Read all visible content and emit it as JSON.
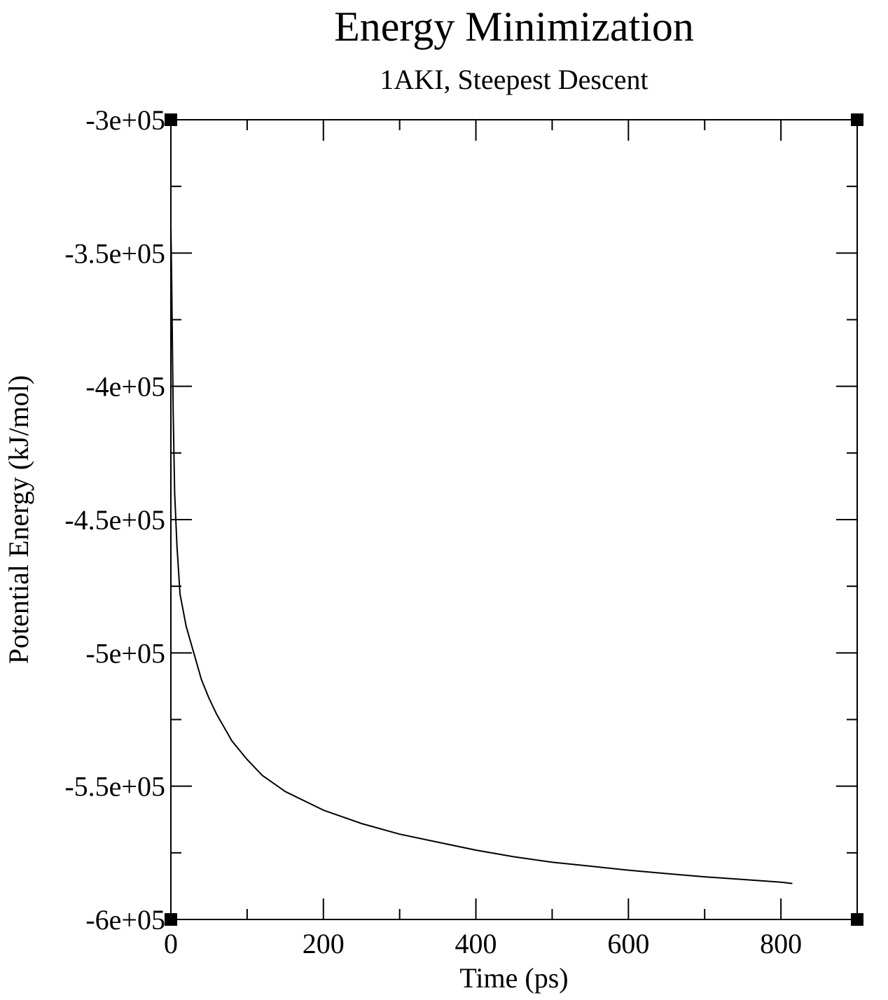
{
  "chart_data": {
    "type": "line",
    "title": "Energy Minimization",
    "subtitle": "1AKI, Steepest Descent",
    "xlabel": "Time (ps)",
    "ylabel": "Potential Energy (kJ/mol)",
    "xlim": [
      0,
      900
    ],
    "ylim": [
      -600000,
      -300000
    ],
    "x_ticks": [
      0,
      200,
      400,
      600,
      800
    ],
    "x_tick_labels": [
      "0",
      "200",
      "400",
      "600",
      "800"
    ],
    "y_ticks": [
      -300000,
      -350000,
      -400000,
      -450000,
      -500000,
      -550000,
      -600000
    ],
    "y_tick_labels": [
      "-3e+05",
      "-3.5e+05",
      "-4e+05",
      "-4.5e+05",
      "-5e+05",
      "-5.5e+05",
      "-6e+05"
    ],
    "x_minor_step": 100,
    "y_minor_step": 25000,
    "grid": false,
    "legend": "none",
    "line_color": "#000000",
    "series": [
      {
        "x": [
          0,
          1,
          2,
          3,
          5,
          8,
          12,
          20,
          30,
          40,
          50,
          60,
          70,
          80,
          100,
          120,
          150,
          200,
          250,
          300,
          350,
          400,
          450,
          500,
          550,
          600,
          650,
          700,
          750,
          800,
          815
        ],
        "y": [
          -340000,
          -360000,
          -385000,
          -410000,
          -440000,
          -460000,
          -478000,
          -490000,
          -500000,
          -510000,
          -517000,
          -523000,
          -528000,
          -533000,
          -540000,
          -546000,
          -552000,
          -559000,
          -564000,
          -568000,
          -571000,
          -574000,
          -576500,
          -578500,
          -580000,
          -581500,
          -582800,
          -584000,
          -585000,
          -586000,
          -586500
        ]
      }
    ]
  }
}
